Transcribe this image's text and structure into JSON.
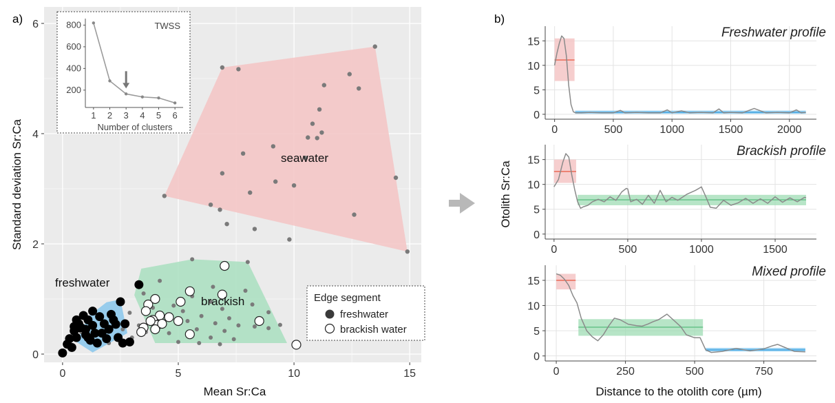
{
  "panel_a": {
    "label": "a)"
  },
  "panel_b": {
    "label": "b)"
  },
  "colors": {
    "panel_bg": "#ebebeb",
    "grid": "#ffffff",
    "seawater_fill": "#f4c6c6",
    "brackish_fill": "#a9dfbf",
    "freshwater_fill": "#8ec9ec",
    "red_line": "#e8604c",
    "blue_band": "#7ec6ef",
    "green_band": "#9fdcb4",
    "profile_line": "#8a8a8a"
  },
  "chart_data": [
    {
      "id": "scatter",
      "type": "scatter",
      "title": "",
      "xlabel": "Mean Sr:Ca",
      "ylabel": "Standard deviation Sr:Ca",
      "xlim": [
        -0.8,
        15.5
      ],
      "ylim": [
        -0.15,
        6.3
      ],
      "xticks": [
        0,
        5,
        10,
        15
      ],
      "yticks": [
        0,
        2,
        4,
        6
      ],
      "grid": true,
      "group_labels": {
        "seawater": "seawater",
        "brackish": "brackish",
        "freshwater": "freshwater"
      },
      "hulls": {
        "seawater": [
          [
            4.4,
            2.87
          ],
          [
            6.9,
            5.2
          ],
          [
            13.5,
            5.58
          ],
          [
            14.9,
            1.86
          ]
        ],
        "brackish": [
          [
            3.1,
            1.07
          ],
          [
            3.4,
            1.55
          ],
          [
            5.6,
            1.72
          ],
          [
            8.0,
            1.67
          ],
          [
            9.7,
            0.2
          ],
          [
            4.0,
            0.2
          ]
        ],
        "freshwater": [
          [
            0.6,
            0.22
          ],
          [
            1.1,
            0.68
          ],
          [
            1.9,
            0.94
          ],
          [
            2.5,
            0.99
          ],
          [
            2.8,
            0.38
          ],
          [
            1.3,
            0.03
          ]
        ]
      },
      "seawater_points": [
        [
          4.4,
          2.87
        ],
        [
          6.9,
          5.2
        ],
        [
          7.6,
          5.17
        ],
        [
          13.5,
          5.58
        ],
        [
          12.4,
          5.08
        ],
        [
          11.3,
          4.88
        ],
        [
          12.8,
          4.82
        ],
        [
          11.1,
          4.44
        ],
        [
          10.8,
          4.18
        ],
        [
          11.2,
          4.02
        ],
        [
          10.6,
          3.93
        ],
        [
          11.0,
          3.92
        ],
        [
          9.1,
          3.77
        ],
        [
          7.8,
          3.64
        ],
        [
          10.5,
          3.56
        ],
        [
          6.9,
          3.28
        ],
        [
          9.2,
          3.13
        ],
        [
          10.0,
          3.06
        ],
        [
          14.4,
          3.2
        ],
        [
          8.1,
          2.93
        ],
        [
          6.4,
          2.71
        ],
        [
          6.8,
          2.62
        ],
        [
          12.6,
          2.53
        ],
        [
          7.1,
          2.36
        ],
        [
          8.3,
          2.27
        ],
        [
          9.8,
          2.08
        ],
        [
          14.9,
          1.86
        ]
      ],
      "brackish_small": [
        [
          5.6,
          1.72
        ],
        [
          8.0,
          1.67
        ],
        [
          4.2,
          1.33
        ],
        [
          6.5,
          1.22
        ],
        [
          7.9,
          1.15
        ],
        [
          3.5,
          1.1
        ],
        [
          5.6,
          1.05
        ],
        [
          6.4,
          0.95
        ],
        [
          8.2,
          0.9
        ],
        [
          4.8,
          0.88
        ],
        [
          3.9,
          0.84
        ],
        [
          5.2,
          0.78
        ],
        [
          6.9,
          0.82
        ],
        [
          8.9,
          0.76
        ],
        [
          4.5,
          0.7
        ],
        [
          6.0,
          0.69
        ],
        [
          7.2,
          0.65
        ],
        [
          8.6,
          0.63
        ],
        [
          5.4,
          0.6
        ],
        [
          6.6,
          0.56
        ],
        [
          7.6,
          0.52
        ],
        [
          8.3,
          0.5
        ],
        [
          9.4,
          0.53
        ],
        [
          5.8,
          0.45
        ],
        [
          7.0,
          0.42
        ],
        [
          3.6,
          0.4
        ],
        [
          4.6,
          0.38
        ],
        [
          6.4,
          0.3
        ],
        [
          7.4,
          0.27
        ],
        [
          8.9,
          0.47
        ],
        [
          5.0,
          0.22
        ],
        [
          5.9,
          0.2
        ],
        [
          6.8,
          0.18
        ],
        [
          4.3,
          0.55
        ],
        [
          3.8,
          0.62
        ],
        [
          2.6,
          0.45
        ],
        [
          2.2,
          0.6
        ],
        [
          1.7,
          0.35
        ],
        [
          2.9,
          0.75
        ],
        [
          3.3,
          0.52
        ],
        [
          2.0,
          0.2
        ],
        [
          1.2,
          0.6
        ],
        [
          0.8,
          0.4
        ],
        [
          2.4,
          0.28
        ],
        [
          3.0,
          0.3
        ]
      ],
      "freshwater_edge": [
        [
          3.3,
          1.26
        ],
        [
          2.5,
          0.95
        ],
        [
          0.2,
          0.18
        ],
        [
          0.0,
          0.02
        ],
        [
          0.3,
          0.28
        ],
        [
          0.5,
          0.42
        ],
        [
          0.7,
          0.55
        ],
        [
          0.9,
          0.7
        ],
        [
          0.6,
          0.3
        ],
        [
          1.0,
          0.45
        ],
        [
          1.1,
          0.62
        ],
        [
          1.3,
          0.52
        ],
        [
          1.4,
          0.38
        ],
        [
          1.6,
          0.68
        ],
        [
          1.8,
          0.55
        ],
        [
          2.0,
          0.45
        ],
        [
          2.2,
          0.62
        ],
        [
          2.4,
          0.3
        ],
        [
          2.7,
          0.55
        ],
        [
          1.2,
          0.25
        ],
        [
          0.4,
          0.12
        ],
        [
          1.5,
          0.2
        ],
        [
          2.9,
          0.22
        ],
        [
          2.6,
          0.2
        ],
        [
          0.8,
          0.48
        ],
        [
          1.3,
          0.78
        ],
        [
          0.6,
          0.62
        ],
        [
          1.7,
          0.38
        ],
        [
          2.1,
          0.72
        ],
        [
          1.9,
          0.28
        ],
        [
          0.7,
          0.48
        ],
        [
          1.1,
          0.3
        ],
        [
          0.5,
          0.5
        ],
        [
          1.0,
          0.35
        ],
        [
          2.3,
          0.54
        ]
      ],
      "brackish_edge": [
        [
          7.0,
          1.6
        ],
        [
          5.5,
          1.14
        ],
        [
          6.9,
          1.08
        ],
        [
          5.1,
          0.95
        ],
        [
          3.7,
          0.9
        ],
        [
          4.0,
          1.0
        ],
        [
          3.6,
          0.78
        ],
        [
          4.2,
          0.7
        ],
        [
          3.9,
          0.62
        ],
        [
          4.6,
          0.67
        ],
        [
          5.0,
          0.6
        ],
        [
          4.1,
          0.53
        ],
        [
          3.5,
          0.48
        ],
        [
          3.4,
          0.4
        ],
        [
          4.0,
          0.45
        ],
        [
          4.3,
          0.55
        ],
        [
          5.5,
          0.36
        ],
        [
          3.8,
          0.6
        ],
        [
          8.5,
          0.6
        ],
        [
          10.1,
          0.17
        ]
      ],
      "inset": {
        "type": "line",
        "title": "TWSS",
        "xlabel": "Number of clusters",
        "x": [
          1,
          2,
          3,
          4,
          5,
          6
        ],
        "y": [
          820,
          285,
          165,
          137,
          128,
          82
        ],
        "xlim": [
          0.5,
          6.5
        ],
        "ylim": [
          40,
          860
        ],
        "yticks": [
          200,
          400,
          600,
          800
        ],
        "xticks": [
          1,
          2,
          3,
          4,
          5,
          6
        ],
        "arrow_at": 3
      },
      "legend": {
        "title": "Edge segment",
        "items": [
          {
            "label": "freshwater",
            "marker": "filled"
          },
          {
            "label": "brackish water",
            "marker": "open"
          }
        ],
        "placement": "bottom-right"
      }
    },
    {
      "id": "freshwater_profile",
      "type": "line",
      "title": "Freshwater profile",
      "xlim": [
        -80,
        2230
      ],
      "ylim": [
        -1,
        18
      ],
      "xticks": [
        0,
        500,
        1000,
        1500,
        2000
      ],
      "yticks": [
        0,
        5,
        10,
        15
      ],
      "segments": [
        {
          "kind": "seawater",
          "x0": 0,
          "x1": 170,
          "mean": 11.1,
          "lo": 6.8,
          "hi": 15.5
        },
        {
          "kind": "freshwater",
          "x0": 175,
          "x1": 2140,
          "mean": 0.4,
          "lo": 0.1,
          "hi": 0.75
        }
      ],
      "x": [
        0,
        20,
        40,
        60,
        80,
        100,
        120,
        140,
        160,
        180,
        230,
        300,
        400,
        500,
        560,
        600,
        700,
        800,
        900,
        960,
        1000,
        1080,
        1150,
        1250,
        1350,
        1400,
        1440,
        1500,
        1600,
        1700,
        1800,
        1900,
        2000,
        2060,
        2100,
        2140
      ],
      "y": [
        10.0,
        12.5,
        14.5,
        16.0,
        15.5,
        12.0,
        6.0,
        2.0,
        0.5,
        0.3,
        0.3,
        0.4,
        0.3,
        0.3,
        0.8,
        0.3,
        0.4,
        0.3,
        0.3,
        0.9,
        0.3,
        0.7,
        0.3,
        0.4,
        0.3,
        1.1,
        0.3,
        0.4,
        0.3,
        1.2,
        0.3,
        0.4,
        0.3,
        0.9,
        0.3,
        0.4
      ]
    },
    {
      "id": "brackish_profile",
      "type": "line",
      "title": "Brackish profile",
      "ylabel": "Otolith Sr:Ca",
      "xlim": [
        -60,
        1780
      ],
      "ylim": [
        -1,
        18
      ],
      "xticks": [
        0,
        500,
        1000,
        1500
      ],
      "yticks": [
        0,
        5,
        10,
        15
      ],
      "segments": [
        {
          "kind": "seawater",
          "x0": 0,
          "x1": 150,
          "mean": 12.6,
          "lo": 10.3,
          "hi": 15.0
        },
        {
          "kind": "brackish",
          "x0": 160,
          "x1": 1710,
          "mean": 6.9,
          "lo": 5.8,
          "hi": 7.9
        }
      ],
      "x": [
        0,
        30,
        60,
        80,
        100,
        120,
        140,
        160,
        180,
        200,
        230,
        260,
        300,
        340,
        380,
        420,
        460,
        490,
        500,
        520,
        560,
        600,
        640,
        680,
        720,
        760,
        800,
        840,
        900,
        960,
        1000,
        1030,
        1060,
        1100,
        1150,
        1200,
        1250,
        1300,
        1350,
        1400,
        1450,
        1500,
        1550,
        1600,
        1650,
        1700,
        1710
      ],
      "y": [
        9.5,
        11.0,
        14.5,
        16.2,
        15.5,
        12.0,
        9.0,
        6.5,
        5.2,
        5.5,
        5.8,
        6.5,
        7.0,
        6.5,
        7.5,
        6.8,
        8.5,
        9.2,
        9.1,
        6.5,
        7.0,
        6.0,
        7.8,
        6.2,
        8.8,
        6.5,
        7.4,
        6.8,
        8.0,
        8.8,
        9.5,
        7.5,
        5.4,
        5.2,
        6.8,
        5.8,
        6.3,
        7.2,
        6.2,
        7.1,
        6.2,
        7.5,
        6.4,
        7.3,
        6.5,
        7.4,
        7.3
      ]
    },
    {
      "id": "mixed_profile",
      "type": "line",
      "title": "Mixed profile",
      "xlabel": "Distance to the otolith core (µm)",
      "xlim": [
        -40,
        940
      ],
      "ylim": [
        -1,
        18
      ],
      "xticks": [
        0,
        250,
        500,
        750
      ],
      "yticks": [
        0,
        5,
        10,
        15
      ],
      "segments": [
        {
          "kind": "seawater",
          "x0": 0,
          "x1": 70,
          "mean": 15.0,
          "lo": 13.2,
          "hi": 16.3
        },
        {
          "kind": "brackish",
          "x0": 80,
          "x1": 530,
          "mean": 5.7,
          "lo": 4.0,
          "hi": 7.3
        },
        {
          "kind": "freshwater",
          "x0": 540,
          "x1": 900,
          "mean": 1.2,
          "lo": 0.9,
          "hi": 1.6
        }
      ],
      "x": [
        0,
        15,
        30,
        45,
        60,
        75,
        90,
        110,
        130,
        150,
        170,
        190,
        210,
        230,
        260,
        290,
        310,
        330,
        350,
        370,
        400,
        430,
        450,
        470,
        500,
        520,
        540,
        560,
        600,
        650,
        700,
        750,
        780,
        800,
        830,
        860,
        900
      ],
      "y": [
        16.3,
        16.0,
        15.2,
        14.0,
        12.0,
        10.5,
        7.5,
        5.0,
        3.8,
        3.0,
        4.2,
        6.0,
        7.5,
        7.2,
        6.3,
        6.0,
        5.9,
        6.3,
        6.8,
        7.2,
        8.3,
        6.8,
        5.8,
        4.2,
        3.6,
        3.6,
        1.2,
        0.7,
        0.9,
        1.5,
        1.0,
        1.4,
        2.0,
        2.3,
        1.6,
        0.9,
        0.8
      ]
    }
  ]
}
